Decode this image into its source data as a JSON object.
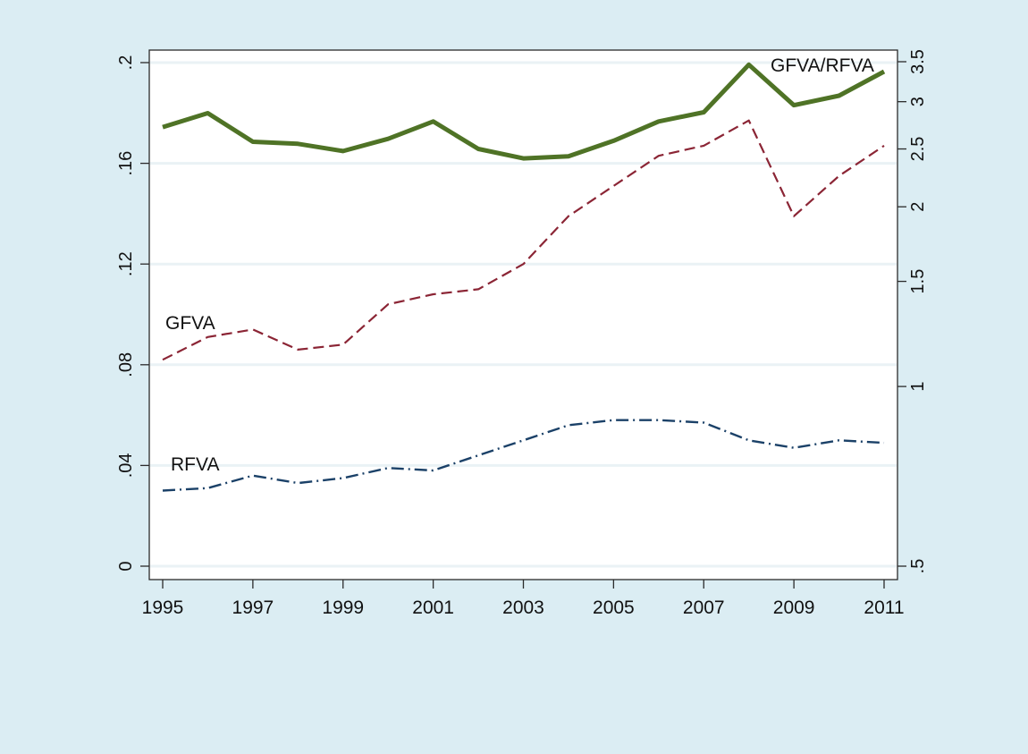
{
  "chart_data": {
    "type": "line",
    "title": "",
    "xlabel": "",
    "ylabel": "",
    "ylabel_right": "",
    "x": [
      1995,
      1996,
      1997,
      1998,
      1999,
      2000,
      2001,
      2002,
      2003,
      2004,
      2005,
      2006,
      2007,
      2008,
      2009,
      2010,
      2011
    ],
    "x_ticks": [
      1995,
      1997,
      1999,
      2001,
      2003,
      2005,
      2007,
      2009,
      2011
    ],
    "x_tick_labels": [
      "1995",
      "1997",
      "1999",
      "2001",
      "2003",
      "2005",
      "2007",
      "2009",
      "2011"
    ],
    "xlim": [
      1995,
      2011
    ],
    "y_left": {
      "ylim": [
        0,
        0.2
      ],
      "ticks": [
        0,
        0.04,
        0.08,
        0.12,
        0.16,
        0.2
      ],
      "tick_labels": [
        "0",
        ".04",
        ".08",
        ".12",
        ".16",
        ".2"
      ],
      "scale": "linear"
    },
    "y_right": {
      "ylim": [
        0.5,
        3.5
      ],
      "ticks": [
        0.5,
        1,
        1.5,
        2,
        2.5,
        3,
        3.5
      ],
      "tick_labels": [
        ".5",
        "1",
        "1.5",
        "2",
        "2.5",
        "3",
        "3.5"
      ],
      "scale": "log"
    },
    "grid": true,
    "legend": "none (inline series labels)",
    "series": [
      {
        "name": "GFVA/RFVA",
        "label": "GFVA/RFVA",
        "axis": "right",
        "color": "#4f7326",
        "style": "solid-thick",
        "values": [
          2.72,
          2.87,
          2.57,
          2.55,
          2.48,
          2.6,
          2.78,
          2.5,
          2.41,
          2.43,
          2.58,
          2.78,
          2.88,
          3.46,
          2.96,
          3.07,
          3.37
        ]
      },
      {
        "name": "GFVA",
        "label": "GFVA",
        "axis": "left",
        "color": "#8b2535",
        "style": "dashed",
        "values": [
          0.082,
          0.091,
          0.094,
          0.086,
          0.088,
          0.104,
          0.108,
          0.11,
          0.12,
          0.139,
          0.151,
          0.163,
          0.167,
          0.177,
          0.139,
          0.155,
          0.167
        ]
      },
      {
        "name": "RFVA",
        "label": "RFVA",
        "axis": "left",
        "color": "#1b4168",
        "style": "dash-dot",
        "values": [
          0.03,
          0.031,
          0.036,
          0.033,
          0.035,
          0.039,
          0.038,
          0.044,
          0.05,
          0.056,
          0.058,
          0.058,
          0.057,
          0.05,
          0.047,
          0.05,
          0.049
        ]
      }
    ]
  }
}
